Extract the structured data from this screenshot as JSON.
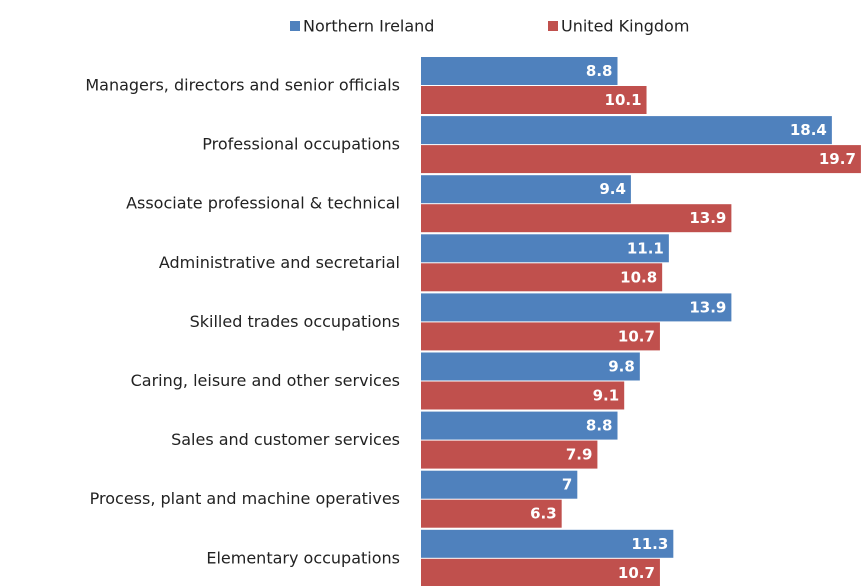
{
  "chart_data": {
    "type": "hbar",
    "categories": [
      "Managers, directors and senior officials",
      "Professional occupations",
      "Associate professional & technical",
      "Administrative and secretarial",
      "Skilled trades occupations",
      "Caring, leisure and other services",
      "Sales and customer services",
      "Process, plant and machine operatives",
      "Elementary occupations"
    ],
    "series": [
      {
        "name": "Northern Ireland",
        "color": "#4f81bd",
        "values": [
          8.8,
          18.4,
          9.4,
          11.1,
          13.9,
          9.8,
          8.8,
          7,
          11.3
        ]
      },
      {
        "name": "United Kingdom",
        "color": "#c0504d",
        "values": [
          10.1,
          19.7,
          13.9,
          10.8,
          10.7,
          9.1,
          7.9,
          6.3,
          10.7
        ]
      }
    ],
    "xlim": [
      0,
      20
    ],
    "legend": "top"
  }
}
